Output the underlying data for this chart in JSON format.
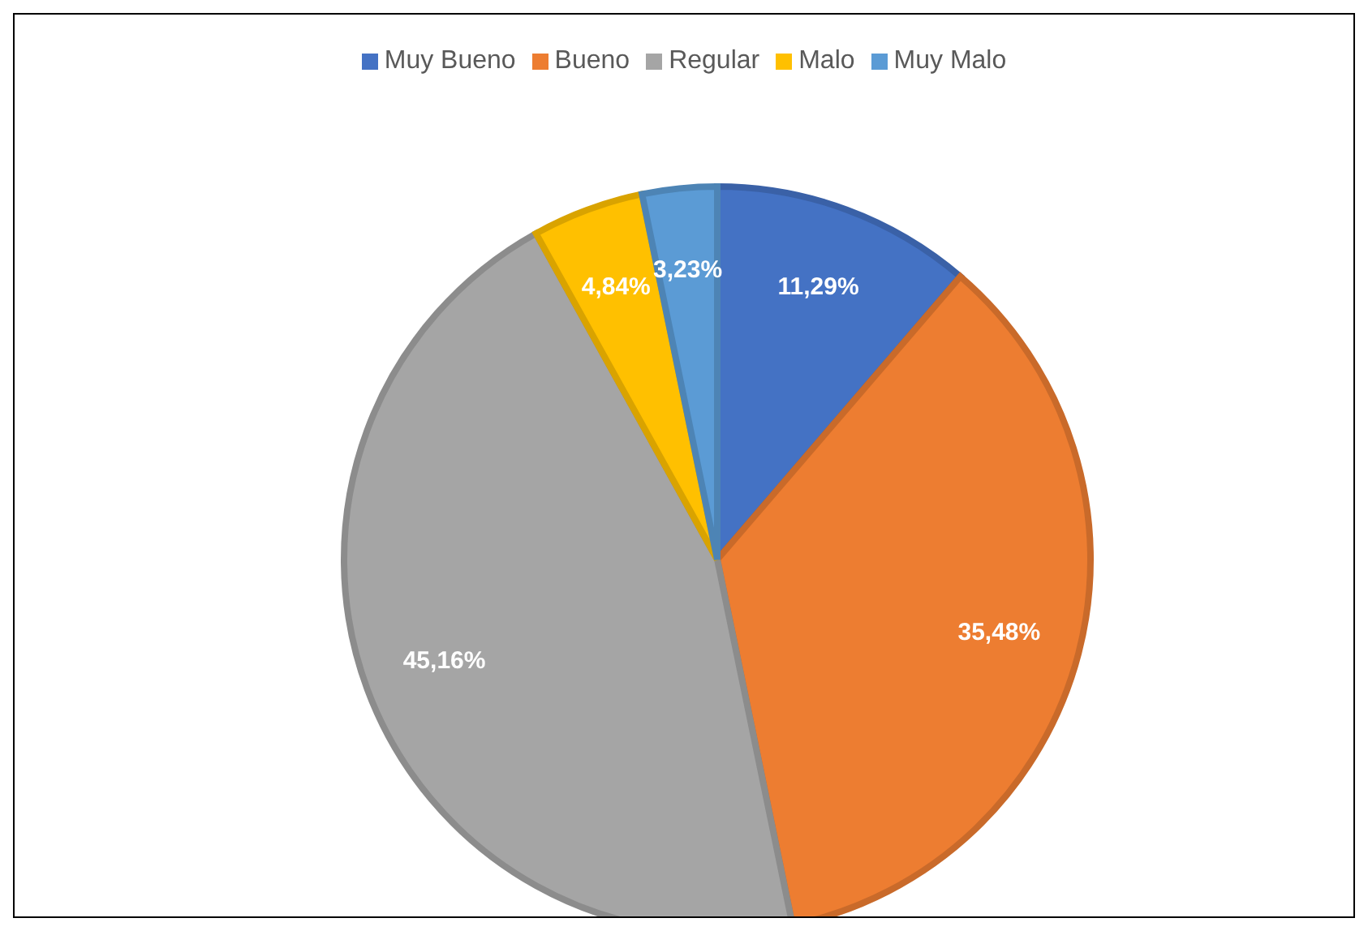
{
  "chart_data": {
    "type": "pie",
    "categories": [
      "Muy Bueno",
      "Bueno",
      "Regular",
      "Malo",
      "Muy Malo"
    ],
    "values": [
      11.29,
      35.48,
      45.16,
      4.84,
      3.23
    ],
    "colors": [
      "#4472c4",
      "#ed7d31",
      "#a5a5a5",
      "#ffc000",
      "#5b9bd5"
    ],
    "value_labels": [
      "11,29%",
      "35,48%",
      "45,16%",
      "4,84%",
      "3,23%"
    ],
    "legend": "top"
  }
}
